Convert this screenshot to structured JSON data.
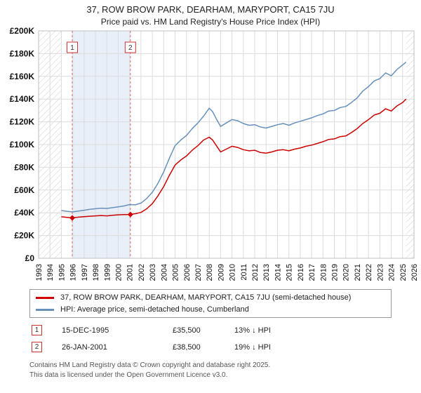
{
  "page": {
    "title": "37, ROW BROW PARK, DEARHAM, MARYPORT, CA15 7JU",
    "subtitle": "Price paid vs. HM Land Registry's House Price Index (HPI)"
  },
  "legend": [
    {
      "label": "37, ROW BROW PARK, DEARHAM, MARYPORT, CA15 7JU (semi-detached house)",
      "color": "#cc0000"
    },
    {
      "label": "HPI: Average price, semi-detached house, Cumberland",
      "color": "#6691bb"
    }
  ],
  "transactions": [
    {
      "num": "1",
      "date": "15-DEC-1995",
      "price": "£35,500",
      "hpi_diff": "13% ↓ HPI"
    },
    {
      "num": "2",
      "date": "26-JAN-2001",
      "price": "£38,500",
      "hpi_diff": "19% ↓ HPI"
    }
  ],
  "footer": {
    "line1": "Contains HM Land Registry data © Crown copyright and database right 2025.",
    "line2": "This data is licensed under the Open Government Licence v3.0."
  },
  "chart_data": {
    "type": "line",
    "title": "37, ROW BROW PARK, DEARHAM, MARYPORT, CA15 7JU",
    "subtitle": "Price paid vs. HM Land Registry's House Price Index (HPI)",
    "xlabel": "",
    "ylabel": "",
    "legend_position": "bottom",
    "grid": true,
    "x_range": [
      1993,
      2026
    ],
    "y_range": [
      0,
      200000
    ],
    "x_ticks": [
      1993,
      1994,
      1995,
      1996,
      1997,
      1998,
      1999,
      2000,
      2001,
      2002,
      2003,
      2004,
      2005,
      2006,
      2007,
      2008,
      2009,
      2010,
      2011,
      2012,
      2013,
      2014,
      2015,
      2016,
      2017,
      2018,
      2019,
      2020,
      2021,
      2022,
      2023,
      2024,
      2025,
      2026
    ],
    "y_ticks": {
      "values": [
        0,
        20000,
        40000,
        60000,
        80000,
        100000,
        120000,
        140000,
        160000,
        180000,
        200000
      ],
      "labels": [
        "£0",
        "£20K",
        "£40K",
        "£60K",
        "£80K",
        "£100K",
        "£120K",
        "£140K",
        "£160K",
        "£180K",
        "£200K"
      ]
    },
    "hatch_regions": [
      [
        1993,
        1995
      ],
      [
        2025.3,
        2026
      ]
    ],
    "shaded_region": [
      1995.96,
      2001.07
    ],
    "events": [
      {
        "label": "1",
        "x": 1995.96,
        "y": 35500
      },
      {
        "label": "2",
        "x": 2001.07,
        "y": 38500
      }
    ],
    "colors": {
      "red": "#cc0000",
      "blue": "#6691bb",
      "grid": "#dcdcdc",
      "border": "#c0c0c0",
      "shade": "#e8eff9",
      "hatch": "#cfcfcf",
      "event_line": "#d46a6a",
      "event_box": "#cc3333"
    },
    "series": [
      {
        "name": "HPI: Average price, semi-detached house, Cumberland",
        "color": "#6691bb",
        "points": [
          [
            1995.0,
            42000
          ],
          [
            1995.5,
            41300
          ],
          [
            1996.0,
            40800
          ],
          [
            1996.5,
            41500
          ],
          [
            1997.0,
            42200
          ],
          [
            1997.5,
            43000
          ],
          [
            1998.0,
            43600
          ],
          [
            1998.5,
            44100
          ],
          [
            1999.0,
            43800
          ],
          [
            1999.5,
            44500
          ],
          [
            2000.0,
            45200
          ],
          [
            2000.5,
            46000
          ],
          [
            2001.0,
            47200
          ],
          [
            2001.5,
            47000
          ],
          [
            2002.0,
            48500
          ],
          [
            2002.5,
            52500
          ],
          [
            2003.0,
            58000
          ],
          [
            2003.5,
            66000
          ],
          [
            2004.0,
            76000
          ],
          [
            2004.5,
            88000
          ],
          [
            2005.0,
            99000
          ],
          [
            2005.5,
            104000
          ],
          [
            2006.0,
            108000
          ],
          [
            2006.5,
            114000
          ],
          [
            2007.0,
            119000
          ],
          [
            2007.5,
            125000
          ],
          [
            2008.0,
            132000
          ],
          [
            2008.3,
            129000
          ],
          [
            2008.6,
            123000
          ],
          [
            2009.0,
            116000
          ],
          [
            2009.5,
            119000
          ],
          [
            2010.0,
            122000
          ],
          [
            2010.5,
            121000
          ],
          [
            2011.0,
            118500
          ],
          [
            2011.5,
            117000
          ],
          [
            2012.0,
            117500
          ],
          [
            2012.5,
            115500
          ],
          [
            2013.0,
            114500
          ],
          [
            2013.5,
            116000
          ],
          [
            2014.0,
            117500
          ],
          [
            2014.5,
            118500
          ],
          [
            2015.0,
            117000
          ],
          [
            2015.5,
            119000
          ],
          [
            2016.0,
            120500
          ],
          [
            2016.5,
            122000
          ],
          [
            2017.0,
            123500
          ],
          [
            2017.5,
            125500
          ],
          [
            2018.0,
            127000
          ],
          [
            2018.5,
            129500
          ],
          [
            2019.0,
            130000
          ],
          [
            2019.5,
            132500
          ],
          [
            2020.0,
            133500
          ],
          [
            2020.5,
            137000
          ],
          [
            2021.0,
            141000
          ],
          [
            2021.5,
            147000
          ],
          [
            2022.0,
            151000
          ],
          [
            2022.5,
            156000
          ],
          [
            2023.0,
            158000
          ],
          [
            2023.5,
            163000
          ],
          [
            2024.0,
            160500
          ],
          [
            2024.5,
            166000
          ],
          [
            2025.0,
            170000
          ],
          [
            2025.3,
            172500
          ]
        ]
      },
      {
        "name": "37, ROW BROW PARK, DEARHAM, MARYPORT, CA15 7JU (semi-detached house)",
        "color": "#cc0000",
        "points": [
          [
            1995.0,
            36500
          ],
          [
            1995.5,
            36000
          ],
          [
            1995.96,
            35500
          ],
          [
            1996.5,
            36200
          ],
          [
            1997.0,
            36600
          ],
          [
            1997.5,
            37000
          ],
          [
            1998.0,
            37300
          ],
          [
            1998.5,
            37600
          ],
          [
            1999.0,
            37300
          ],
          [
            1999.5,
            37800
          ],
          [
            2000.0,
            38200
          ],
          [
            2000.5,
            38400
          ],
          [
            2001.07,
            38500
          ],
          [
            2001.5,
            39200
          ],
          [
            2002.0,
            40300
          ],
          [
            2002.5,
            43500
          ],
          [
            2003.0,
            48000
          ],
          [
            2003.5,
            55000
          ],
          [
            2004.0,
            63000
          ],
          [
            2004.5,
            73000
          ],
          [
            2005.0,
            82000
          ],
          [
            2005.5,
            86500
          ],
          [
            2006.0,
            90000
          ],
          [
            2006.5,
            95000
          ],
          [
            2007.0,
            99000
          ],
          [
            2007.5,
            104000
          ],
          [
            2008.0,
            106500
          ],
          [
            2008.3,
            104000
          ],
          [
            2008.6,
            99500
          ],
          [
            2009.0,
            93500
          ],
          [
            2009.5,
            96000
          ],
          [
            2010.0,
            98500
          ],
          [
            2010.5,
            97500
          ],
          [
            2011.0,
            95500
          ],
          [
            2011.5,
            94500
          ],
          [
            2012.0,
            95000
          ],
          [
            2012.5,
            93000
          ],
          [
            2013.0,
            92500
          ],
          [
            2013.5,
            93500
          ],
          [
            2014.0,
            95000
          ],
          [
            2014.5,
            95500
          ],
          [
            2015.0,
            94500
          ],
          [
            2015.5,
            96000
          ],
          [
            2016.0,
            97000
          ],
          [
            2016.5,
            98500
          ],
          [
            2017.0,
            99500
          ],
          [
            2017.5,
            101000
          ],
          [
            2018.0,
            102500
          ],
          [
            2018.5,
            104500
          ],
          [
            2019.0,
            105000
          ],
          [
            2019.5,
            107000
          ],
          [
            2020.0,
            107500
          ],
          [
            2020.5,
            110500
          ],
          [
            2021.0,
            114000
          ],
          [
            2021.5,
            118500
          ],
          [
            2022.0,
            122000
          ],
          [
            2022.5,
            126000
          ],
          [
            2023.0,
            127500
          ],
          [
            2023.5,
            131500
          ],
          [
            2024.0,
            129500
          ],
          [
            2024.5,
            134000
          ],
          [
            2025.0,
            137000
          ],
          [
            2025.3,
            140000
          ]
        ]
      }
    ]
  }
}
